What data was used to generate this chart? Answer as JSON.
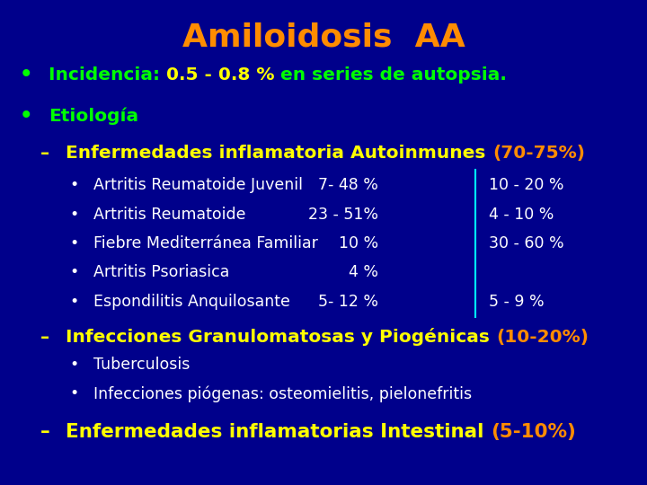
{
  "title": "Amiloidosis  AA",
  "title_color": "#FF8C00",
  "background_color": "#00008B",
  "figsize": [
    7.2,
    5.4
  ],
  "dpi": 100,
  "bullet_color": "#00FF00",
  "green_text_color": "#00FF00",
  "yellow_text_color": "#FFFF00",
  "white_text_color": "#FFFFFF",
  "cyan_line_color": "#00FFFF",
  "lines": [
    {
      "type": "bullet1",
      "parts": [
        {
          "text": "Incidencia: ",
          "color": "#00FF00",
          "bold": true
        },
        {
          "text": "0.5 - 0.8 % ",
          "color": "#FFFF00",
          "bold": true
        },
        {
          "text": "en series de autopsia.",
          "color": "#00FF00",
          "bold": true
        }
      ]
    },
    {
      "type": "bullet1",
      "parts": [
        {
          "text": "Etiología",
          "color": "#00FF00",
          "bold": true
        }
      ]
    },
    {
      "type": "dash",
      "parts": [
        {
          "text": "Enfermedades inflamatoria Autoinmunes ",
          "color": "#FFFF00",
          "bold": true
        },
        {
          "text": "(70-75%)",
          "color": "#FF8C00",
          "bold": true
        }
      ]
    },
    {
      "type": "bullet2",
      "col1": "Artritis Reumatoide Juvenil",
      "col2": "7- 48 %",
      "col3": "10 - 20 %"
    },
    {
      "type": "bullet2",
      "col1": "Artritis Reumatoide",
      "col2": "23 - 51%",
      "col3": "4 - 10 %"
    },
    {
      "type": "bullet2",
      "col1": "Fiebre Mediterránea Familiar",
      "col2": "10 %",
      "col3": "30 - 60 %"
    },
    {
      "type": "bullet2",
      "col1": "Artritis Psoriasica",
      "col2": "4 %",
      "col3": ""
    },
    {
      "type": "bullet2",
      "col1": "Espondilitis Anquilosante",
      "col2": "5- 12 %",
      "col3": "5 - 9 %"
    },
    {
      "type": "dash",
      "parts": [
        {
          "text": "Infecciones Granulomatosas y Piogénicas ",
          "color": "#FFFF00",
          "bold": true
        },
        {
          "text": "(10-20%)",
          "color": "#FF8C00",
          "bold": true
        }
      ]
    },
    {
      "type": "bullet2b",
      "text": "Tuberculosis"
    },
    {
      "type": "bullet2b",
      "text": "Infecciones piógenas: osteomielitis, pielonefritis"
    },
    {
      "type": "dash_yellow",
      "parts": [
        {
          "text": "Enfermedades inflamatorias Intestinal ",
          "color": "#FFFF00",
          "bold": true
        },
        {
          "text": "(5-10%)",
          "color": "#FF8C00",
          "bold": true
        }
      ]
    }
  ]
}
